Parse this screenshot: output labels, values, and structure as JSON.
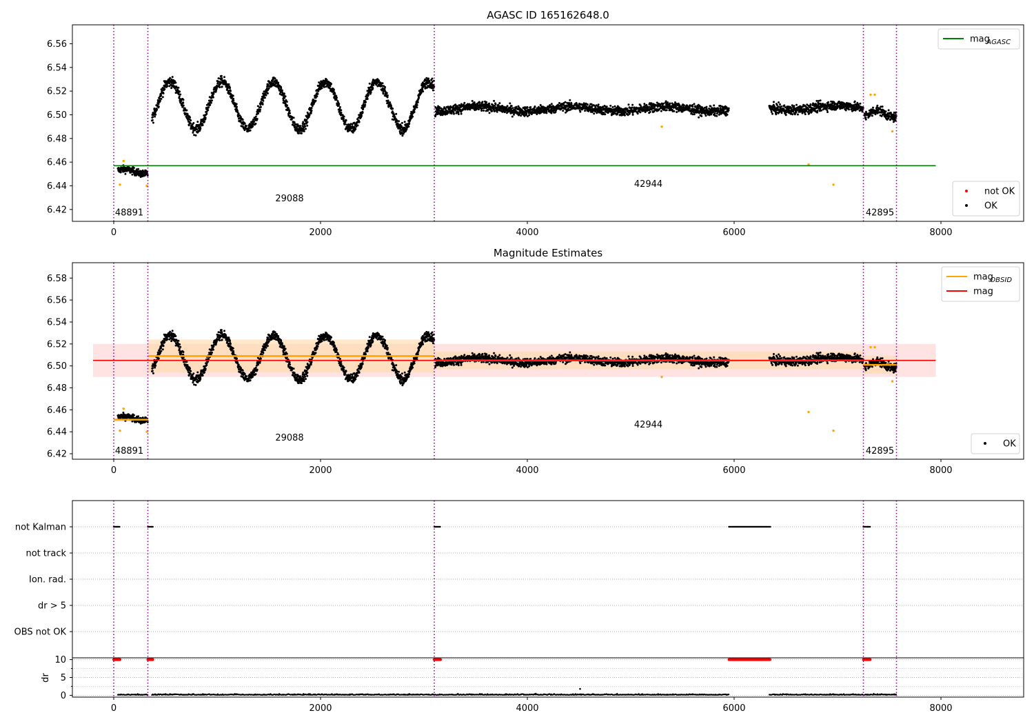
{
  "figure": {
    "width": 1500,
    "height": 1050
  },
  "chart_data": [
    {
      "type": "scatter",
      "title": "AGASC ID 165162648.0",
      "xlim": [
        -400,
        8800
      ],
      "ylim": [
        6.41,
        6.576
      ],
      "xticks": [
        0,
        2000,
        4000,
        6000,
        8000
      ],
      "yticks": [
        6.42,
        6.44,
        6.46,
        6.48,
        6.5,
        6.52,
        6.54,
        6.56
      ],
      "obs_boundaries": [
        0,
        330,
        3100,
        7250,
        7570
      ],
      "obs_labels": [
        {
          "text": "48891",
          "x": 150,
          "y": 6.415
        },
        {
          "text": "29088",
          "x": 1700,
          "y": 6.427
        },
        {
          "text": "42944",
          "x": 5170,
          "y": 6.439
        },
        {
          "text": "42895",
          "x": 7410,
          "y": 6.415
        }
      ],
      "agasc_mag": {
        "value": 6.457,
        "x_range": [
          0,
          7950
        ],
        "color": "#008000"
      },
      "series_segments": [
        {
          "x_range": [
            40,
            330
          ],
          "mean": 6.452,
          "amp": 0.002,
          "noise": 0.006,
          "period": 400
        },
        {
          "x_range": [
            370,
            3100
          ],
          "mean": 6.508,
          "amp": 0.02,
          "noise": 0.009,
          "period": 500
        },
        {
          "x_range": [
            3110,
            5950
          ],
          "mean": 6.505,
          "amp": 0.002,
          "noise": 0.008,
          "period": 900
        },
        {
          "x_range": [
            6340,
            7250
          ],
          "mean": 6.506,
          "amp": 0.002,
          "noise": 0.008,
          "period": 900
        },
        {
          "x_range": [
            7260,
            7570
          ],
          "mean": 6.501,
          "amp": 0.003,
          "noise": 0.008,
          "period": 300
        }
      ],
      "outliers": [
        {
          "x": 60,
          "y": 6.441
        },
        {
          "x": 95,
          "y": 6.461
        },
        {
          "x": 320,
          "y": 6.44
        },
        {
          "x": 5300,
          "y": 6.49
        },
        {
          "x": 6720,
          "y": 6.458
        },
        {
          "x": 6960,
          "y": 6.441
        },
        {
          "x": 7320,
          "y": 6.517
        },
        {
          "x": 7360,
          "y": 6.517
        },
        {
          "x": 7530,
          "y": 6.486
        }
      ],
      "legend_top": [
        {
          "label": "mag",
          "sub": "AGASC",
          "color": "#008000"
        }
      ],
      "legend_bottom": [
        {
          "label": "not OK",
          "color": "#ff0000"
        },
        {
          "label": "OK",
          "color": "#000000"
        }
      ]
    },
    {
      "type": "scatter",
      "title": "Magnitude Estimates",
      "xlim": [
        -400,
        8800
      ],
      "ylim": [
        6.415,
        6.594
      ],
      "xticks": [
        0,
        2000,
        4000,
        6000,
        8000
      ],
      "yticks": [
        6.42,
        6.44,
        6.46,
        6.48,
        6.5,
        6.52,
        6.54,
        6.56,
        6.58
      ],
      "obs_boundaries": [
        0,
        330,
        3100,
        7250,
        7570
      ],
      "obs_labels": [
        {
          "text": "48891",
          "x": 150,
          "y": 6.42
        },
        {
          "text": "29088",
          "x": 1700,
          "y": 6.432
        },
        {
          "text": "42944",
          "x": 5170,
          "y": 6.444
        },
        {
          "text": "42895",
          "x": 7410,
          "y": 6.42
        }
      ],
      "mag": {
        "value": 6.505,
        "band": [
          6.49,
          6.52
        ],
        "x_range": [
          -200,
          7950
        ],
        "color": "#ff0000"
      },
      "mag_obsid": [
        {
          "x_range": [
            0,
            330
          ],
          "value": 6.451,
          "band": [
            6.449,
            6.453
          ]
        },
        {
          "x_range": [
            330,
            3100
          ],
          "value": 6.509,
          "band": [
            6.494,
            6.524
          ]
        },
        {
          "x_range": [
            3100,
            7250
          ],
          "value": 6.505,
          "band": [
            6.497,
            6.513
          ]
        },
        {
          "x_range": [
            7250,
            7570
          ],
          "value": 6.501,
          "band": [
            6.493,
            6.509
          ]
        }
      ],
      "legend_top": [
        {
          "label": "mag",
          "sub": "OBSID",
          "color": "#ffa500"
        },
        {
          "label": "mag",
          "sub": "",
          "color": "#ff0000"
        }
      ],
      "legend_bottom": [
        {
          "label": "OK",
          "color": "#000000"
        }
      ]
    },
    {
      "type": "scatter",
      "title": "",
      "xlim": [
        -400,
        8800
      ],
      "flag_labels": [
        "not Kalman",
        "not track",
        "Ion. rad.",
        "dr > 5",
        "OBS not OK"
      ],
      "not_kalman_ranges": [
        [
          0,
          60
        ],
        [
          330,
          380
        ],
        [
          3100,
          3160
        ],
        [
          5950,
          6350
        ],
        [
          7250,
          7320
        ]
      ],
      "dr_ylabel": "dr",
      "dr_yticks": [
        0,
        5,
        10
      ],
      "dr_ylim": [
        -0.5,
        10.5
      ],
      "dr_high_ranges": [
        [
          0,
          60
        ],
        [
          330,
          380
        ],
        [
          3100,
          3160
        ],
        [
          5950,
          6350
        ],
        [
          7250,
          7320
        ]
      ],
      "dr_low_segments": [
        [
          40,
          330
        ],
        [
          370,
          3100
        ],
        [
          3110,
          5950
        ],
        [
          6340,
          7250
        ],
        [
          7260,
          7570
        ]
      ],
      "dr_outlier": {
        "x": 4510,
        "y": 1.8
      },
      "xticks": [
        0,
        2000,
        4000,
        6000,
        8000
      ],
      "obs_boundaries": [
        0,
        330,
        3100,
        7250,
        7570
      ]
    }
  ]
}
